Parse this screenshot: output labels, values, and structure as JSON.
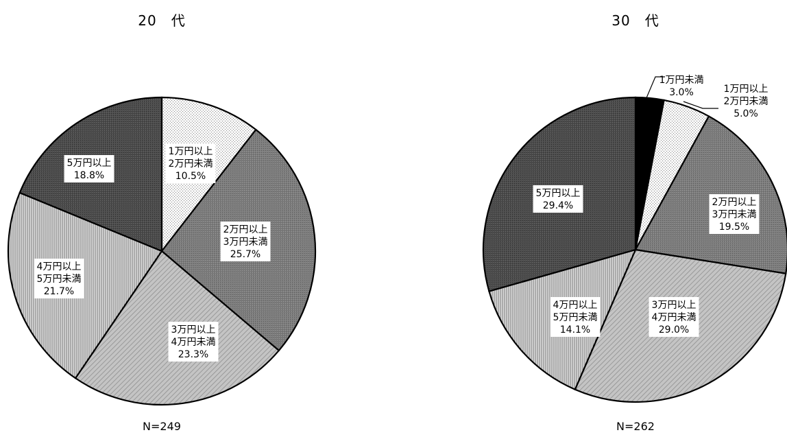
{
  "chart_data": [
    {
      "type": "pie",
      "title": "20　代",
      "n_label": "N=249",
      "slices": [
        {
          "label": [
            "1万円以上",
            "2万円未満"
          ],
          "value": 10.5,
          "value_label": "10.5%",
          "fill": "dots"
        },
        {
          "label": [
            "2万円以上",
            "3万円未満"
          ],
          "value": 25.7,
          "value_label": "25.7%",
          "fill": "dark-gray"
        },
        {
          "label": [
            "3万円以上",
            "4万円未満"
          ],
          "value": 23.3,
          "value_label": "23.3%",
          "fill": "light-hatch"
        },
        {
          "label": [
            "4万円以上",
            "5万円未満"
          ],
          "value": 21.7,
          "value_label": "21.7%",
          "fill": "vertical-lines"
        },
        {
          "label": [
            "5万円以上"
          ],
          "value": 18.8,
          "value_label": "18.8%",
          "fill": "darker-gray"
        }
      ]
    },
    {
      "type": "pie",
      "title": "30　代",
      "n_label": "N=262",
      "slices": [
        {
          "label": [
            "1万円未満"
          ],
          "value": 3.0,
          "value_label": "3.0%",
          "fill": "black",
          "external": true
        },
        {
          "label": [
            "1万円以上",
            "2万円未満"
          ],
          "value": 5.0,
          "value_label": "5.0%",
          "fill": "dots",
          "external": true
        },
        {
          "label": [
            "2万円以上",
            "3万円未満"
          ],
          "value": 19.5,
          "value_label": "19.5%",
          "fill": "dark-gray"
        },
        {
          "label": [
            "3万円以上",
            "4万円未満"
          ],
          "value": 29.0,
          "value_label": "29.0%",
          "fill": "light-hatch"
        },
        {
          "label": [
            "4万円以上",
            "5万円未満"
          ],
          "value": 14.1,
          "value_label": "14.1%",
          "fill": "vertical-lines"
        },
        {
          "label": [
            "5万円以上"
          ],
          "value": 29.4,
          "value_label": "29.4%",
          "fill": "darker-gray"
        }
      ]
    }
  ]
}
